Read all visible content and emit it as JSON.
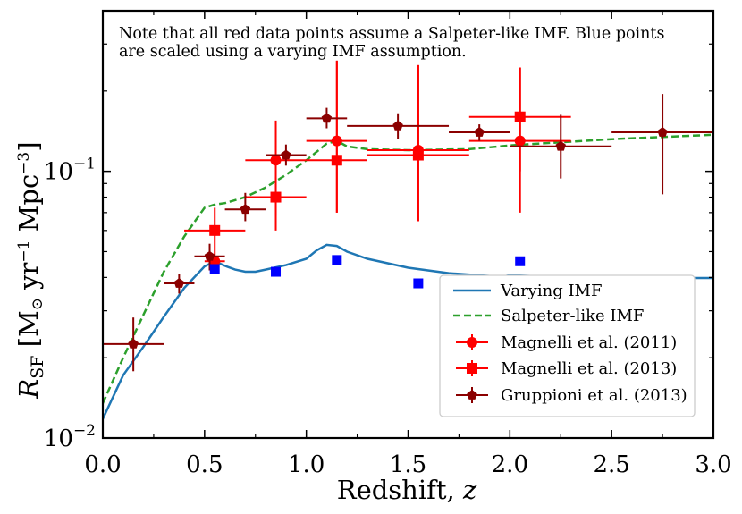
{
  "chart_data": {
    "type": "scatter",
    "xlabel": "Redshift, z",
    "ylabel": "R_SF [M⊙ yr⁻¹ Mpc⁻³]",
    "xlim": [
      0.0,
      3.0
    ],
    "ylim": [
      0.01,
      0.4
    ],
    "yscale": "log",
    "x_ticks": [
      0.0,
      0.5,
      1.0,
      1.5,
      2.0,
      2.5,
      3.0
    ],
    "x_tick_labels": [
      "0.0",
      "0.5",
      "1.0",
      "1.5",
      "2.0",
      "2.5",
      "3.0"
    ],
    "y_tick_labels": [
      {
        "value": 0.01,
        "base": "10",
        "exp": "−2"
      },
      {
        "value": 0.1,
        "base": "10",
        "exp": "−1"
      }
    ],
    "annotation": [
      "Note that all red data points assume a Salpeter-like IMF. Blue points",
      "are scaled using a varying IMF assumption."
    ],
    "legend_position": "lower-right",
    "grid": false,
    "colors": {
      "varying": "#1f77b4",
      "salpeter": "#2ca02c",
      "red": "#ff0000",
      "darkred": "#8b0000",
      "blue": "#0000ff"
    },
    "series": [
      {
        "name": "Varying IMF",
        "kind": "line",
        "style": "solid",
        "color": "#1f77b4",
        "x": [
          0.0,
          0.1,
          0.2,
          0.3,
          0.4,
          0.5,
          0.55,
          0.6,
          0.65,
          0.7,
          0.75,
          0.8,
          0.9,
          1.0,
          1.05,
          1.1,
          1.15,
          1.2,
          1.3,
          1.5,
          1.7,
          1.9,
          1.97,
          2.0,
          2.2,
          2.5,
          3.0
        ],
        "y": [
          0.0118,
          0.0172,
          0.022,
          0.0285,
          0.0365,
          0.044,
          0.046,
          0.0442,
          0.0428,
          0.042,
          0.042,
          0.0428,
          0.0445,
          0.047,
          0.0505,
          0.053,
          0.0525,
          0.05,
          0.047,
          0.0435,
          0.0415,
          0.0405,
          0.0403,
          0.0408,
          0.0402,
          0.0398,
          0.0398
        ]
      },
      {
        "name": "Salpeter-like IMF",
        "kind": "line",
        "style": "dashed",
        "color": "#2ca02c",
        "x": [
          0.0,
          0.1,
          0.2,
          0.3,
          0.4,
          0.5,
          0.55,
          0.6,
          0.7,
          0.8,
          0.9,
          1.0,
          1.1,
          1.15,
          1.2,
          1.3,
          1.5,
          1.8,
          2.0,
          2.5,
          3.0
        ],
        "y": [
          0.0135,
          0.02,
          0.029,
          0.042,
          0.057,
          0.073,
          0.075,
          0.076,
          0.08,
          0.087,
          0.097,
          0.11,
          0.127,
          0.13,
          0.124,
          0.121,
          0.12,
          0.121,
          0.125,
          0.132,
          0.137
        ]
      },
      {
        "name": "Magnelli et al. (2011)",
        "kind": "errorbar",
        "marker": "circle",
        "color": "#ff0000",
        "points": [
          {
            "x": 0.55,
            "y": 0.046,
            "xerr": [
              0.05,
              0.05
            ],
            "yerr": [
              0.046,
              0.046
            ]
          },
          {
            "x": 0.85,
            "y": 0.11,
            "xerr": [
              0.15,
              0.15
            ],
            "yerr": [
              0.06,
              0.155
            ]
          },
          {
            "x": 1.15,
            "y": 0.13,
            "xerr": [
              0.15,
              0.15
            ],
            "yerr": [
              0.07,
              0.26
            ]
          },
          {
            "x": 1.55,
            "y": 0.12,
            "xerr": [
              0.25,
              0.25
            ],
            "yerr": [
              0.065,
              0.25
            ]
          },
          {
            "x": 2.05,
            "y": 0.13,
            "xerr": [
              0.25,
              0.25
            ],
            "yerr": [
              0.07,
              0.245
            ]
          }
        ]
      },
      {
        "name": "Magnelli et al. (2013)",
        "kind": "errorbar",
        "marker": "square",
        "color": "#ff0000",
        "points": [
          {
            "x": 0.55,
            "y": 0.06,
            "xerr": [
              0.15,
              0.15
            ],
            "yerr": [
              0.045,
              0.073
            ]
          },
          {
            "x": 0.85,
            "y": 0.08,
            "xerr": [
              0.15,
              0.15
            ],
            "yerr": [
              0.068,
              0.095
            ]
          },
          {
            "x": 1.15,
            "y": 0.11,
            "xerr": [
              0.15,
              0.15
            ],
            "yerr": [
              0.07,
              0.26
            ]
          },
          {
            "x": 1.55,
            "y": 0.115,
            "xerr": [
              0.25,
              0.25
            ],
            "yerr": [
              0.065,
              0.25
            ]
          },
          {
            "x": 2.05,
            "y": 0.16,
            "xerr": [
              0.25,
              0.25
            ],
            "yerr": [
              0.1,
              0.245
            ]
          }
        ]
      },
      {
        "name": "Gruppioni et al. (2013)",
        "kind": "errorbar",
        "marker": "pentagon",
        "color": "#8b0000",
        "points": [
          {
            "x": 0.15,
            "y": 0.0225,
            "xerr": [
              0.15,
              0.15
            ],
            "yerr": [
              0.0178,
              0.0283
            ]
          },
          {
            "x": 0.375,
            "y": 0.038,
            "xerr": [
              0.075,
              0.075
            ],
            "yerr": [
              0.0348,
              0.0412
            ]
          },
          {
            "x": 0.525,
            "y": 0.048,
            "xerr": [
              0.075,
              0.075
            ],
            "yerr": [
              0.0425,
              0.0535
            ]
          },
          {
            "x": 0.7,
            "y": 0.072,
            "xerr": [
              0.1,
              0.1
            ],
            "yerr": [
              0.065,
              0.083
            ]
          },
          {
            "x": 0.9,
            "y": 0.115,
            "xerr": [
              0.1,
              0.1
            ],
            "yerr": [
              0.105,
              0.126
            ]
          },
          {
            "x": 1.1,
            "y": 0.158,
            "xerr": [
              0.1,
              0.1
            ],
            "yerr": [
              0.145,
              0.173
            ]
          },
          {
            "x": 1.45,
            "y": 0.148,
            "xerr": [
              0.25,
              0.25
            ],
            "yerr": [
              0.132,
              0.165
            ]
          },
          {
            "x": 1.85,
            "y": 0.14,
            "xerr": [
              0.15,
              0.15
            ],
            "yerr": [
              0.13,
              0.15
            ]
          },
          {
            "x": 2.25,
            "y": 0.124,
            "xerr": [
              0.25,
              0.25
            ],
            "yerr": [
              0.094,
              0.163
            ]
          },
          {
            "x": 2.75,
            "y": 0.14,
            "xerr": [
              0.25,
              0.25
            ],
            "yerr": [
              0.082,
              0.195
            ]
          }
        ]
      },
      {
        "name": "",
        "kind": "scatter",
        "marker": "square",
        "color": "#0000ff",
        "x": [
          0.55,
          0.85,
          1.15,
          1.55,
          2.05
        ],
        "y": [
          0.043,
          0.042,
          0.0465,
          0.038,
          0.046
        ]
      }
    ]
  }
}
